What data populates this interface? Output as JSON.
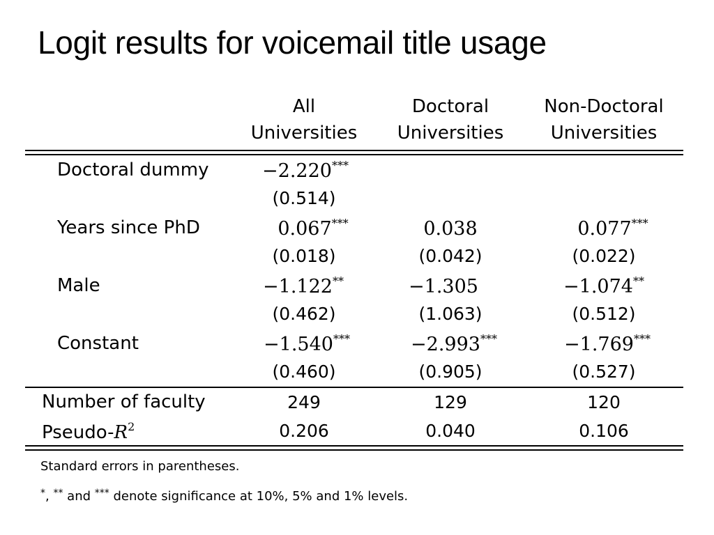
{
  "slide": {
    "title": "Logit results for voicemail title usage"
  },
  "table": {
    "columns": [
      {
        "line1": "All",
        "line2": "Universities"
      },
      {
        "line1": "Doctoral",
        "line2": "Universities"
      },
      {
        "line1": "Non-Doctoral",
        "line2": "Universities"
      }
    ],
    "rows": [
      {
        "label": "Doctoral dummy",
        "coef": [
          "−2.220",
          "",
          ""
        ],
        "stars": [
          "***",
          "",
          ""
        ],
        "se": [
          "(0.514)",
          "",
          ""
        ]
      },
      {
        "label": "Years since PhD",
        "coef": [
          "0.067",
          "0.038",
          "0.077"
        ],
        "stars": [
          "***",
          "",
          "***"
        ],
        "se": [
          "(0.018)",
          "(0.042)",
          "(0.022)"
        ]
      },
      {
        "label": "Male",
        "coef": [
          "−1.122",
          "−1.305",
          "−1.074"
        ],
        "stars": [
          "**",
          "",
          "**"
        ],
        "se": [
          "(0.462)",
          "(1.063)",
          "(0.512)"
        ]
      },
      {
        "label": "Constant",
        "coef": [
          "−1.540",
          "−2.993",
          "−1.769"
        ],
        "stars": [
          "***",
          "***",
          "***"
        ],
        "se": [
          "(0.460)",
          "(0.905)",
          "(0.527)"
        ]
      }
    ],
    "stats": [
      {
        "label": "Number of faculty",
        "values": [
          "249",
          "129",
          "120"
        ]
      },
      {
        "label_prefix": "Pseudo-",
        "label_var": "R",
        "label_sup": "2",
        "values": [
          "0.206",
          "0.040",
          "0.106"
        ]
      }
    ]
  },
  "notes": {
    "line1": "Standard errors in parentheses.",
    "line2": {
      "s1": "*",
      "sep1": ", ",
      "s2": "**",
      "sep2": " and ",
      "s3": "***",
      "rest": " denote significance at 10%, 5% and 1% levels."
    }
  }
}
